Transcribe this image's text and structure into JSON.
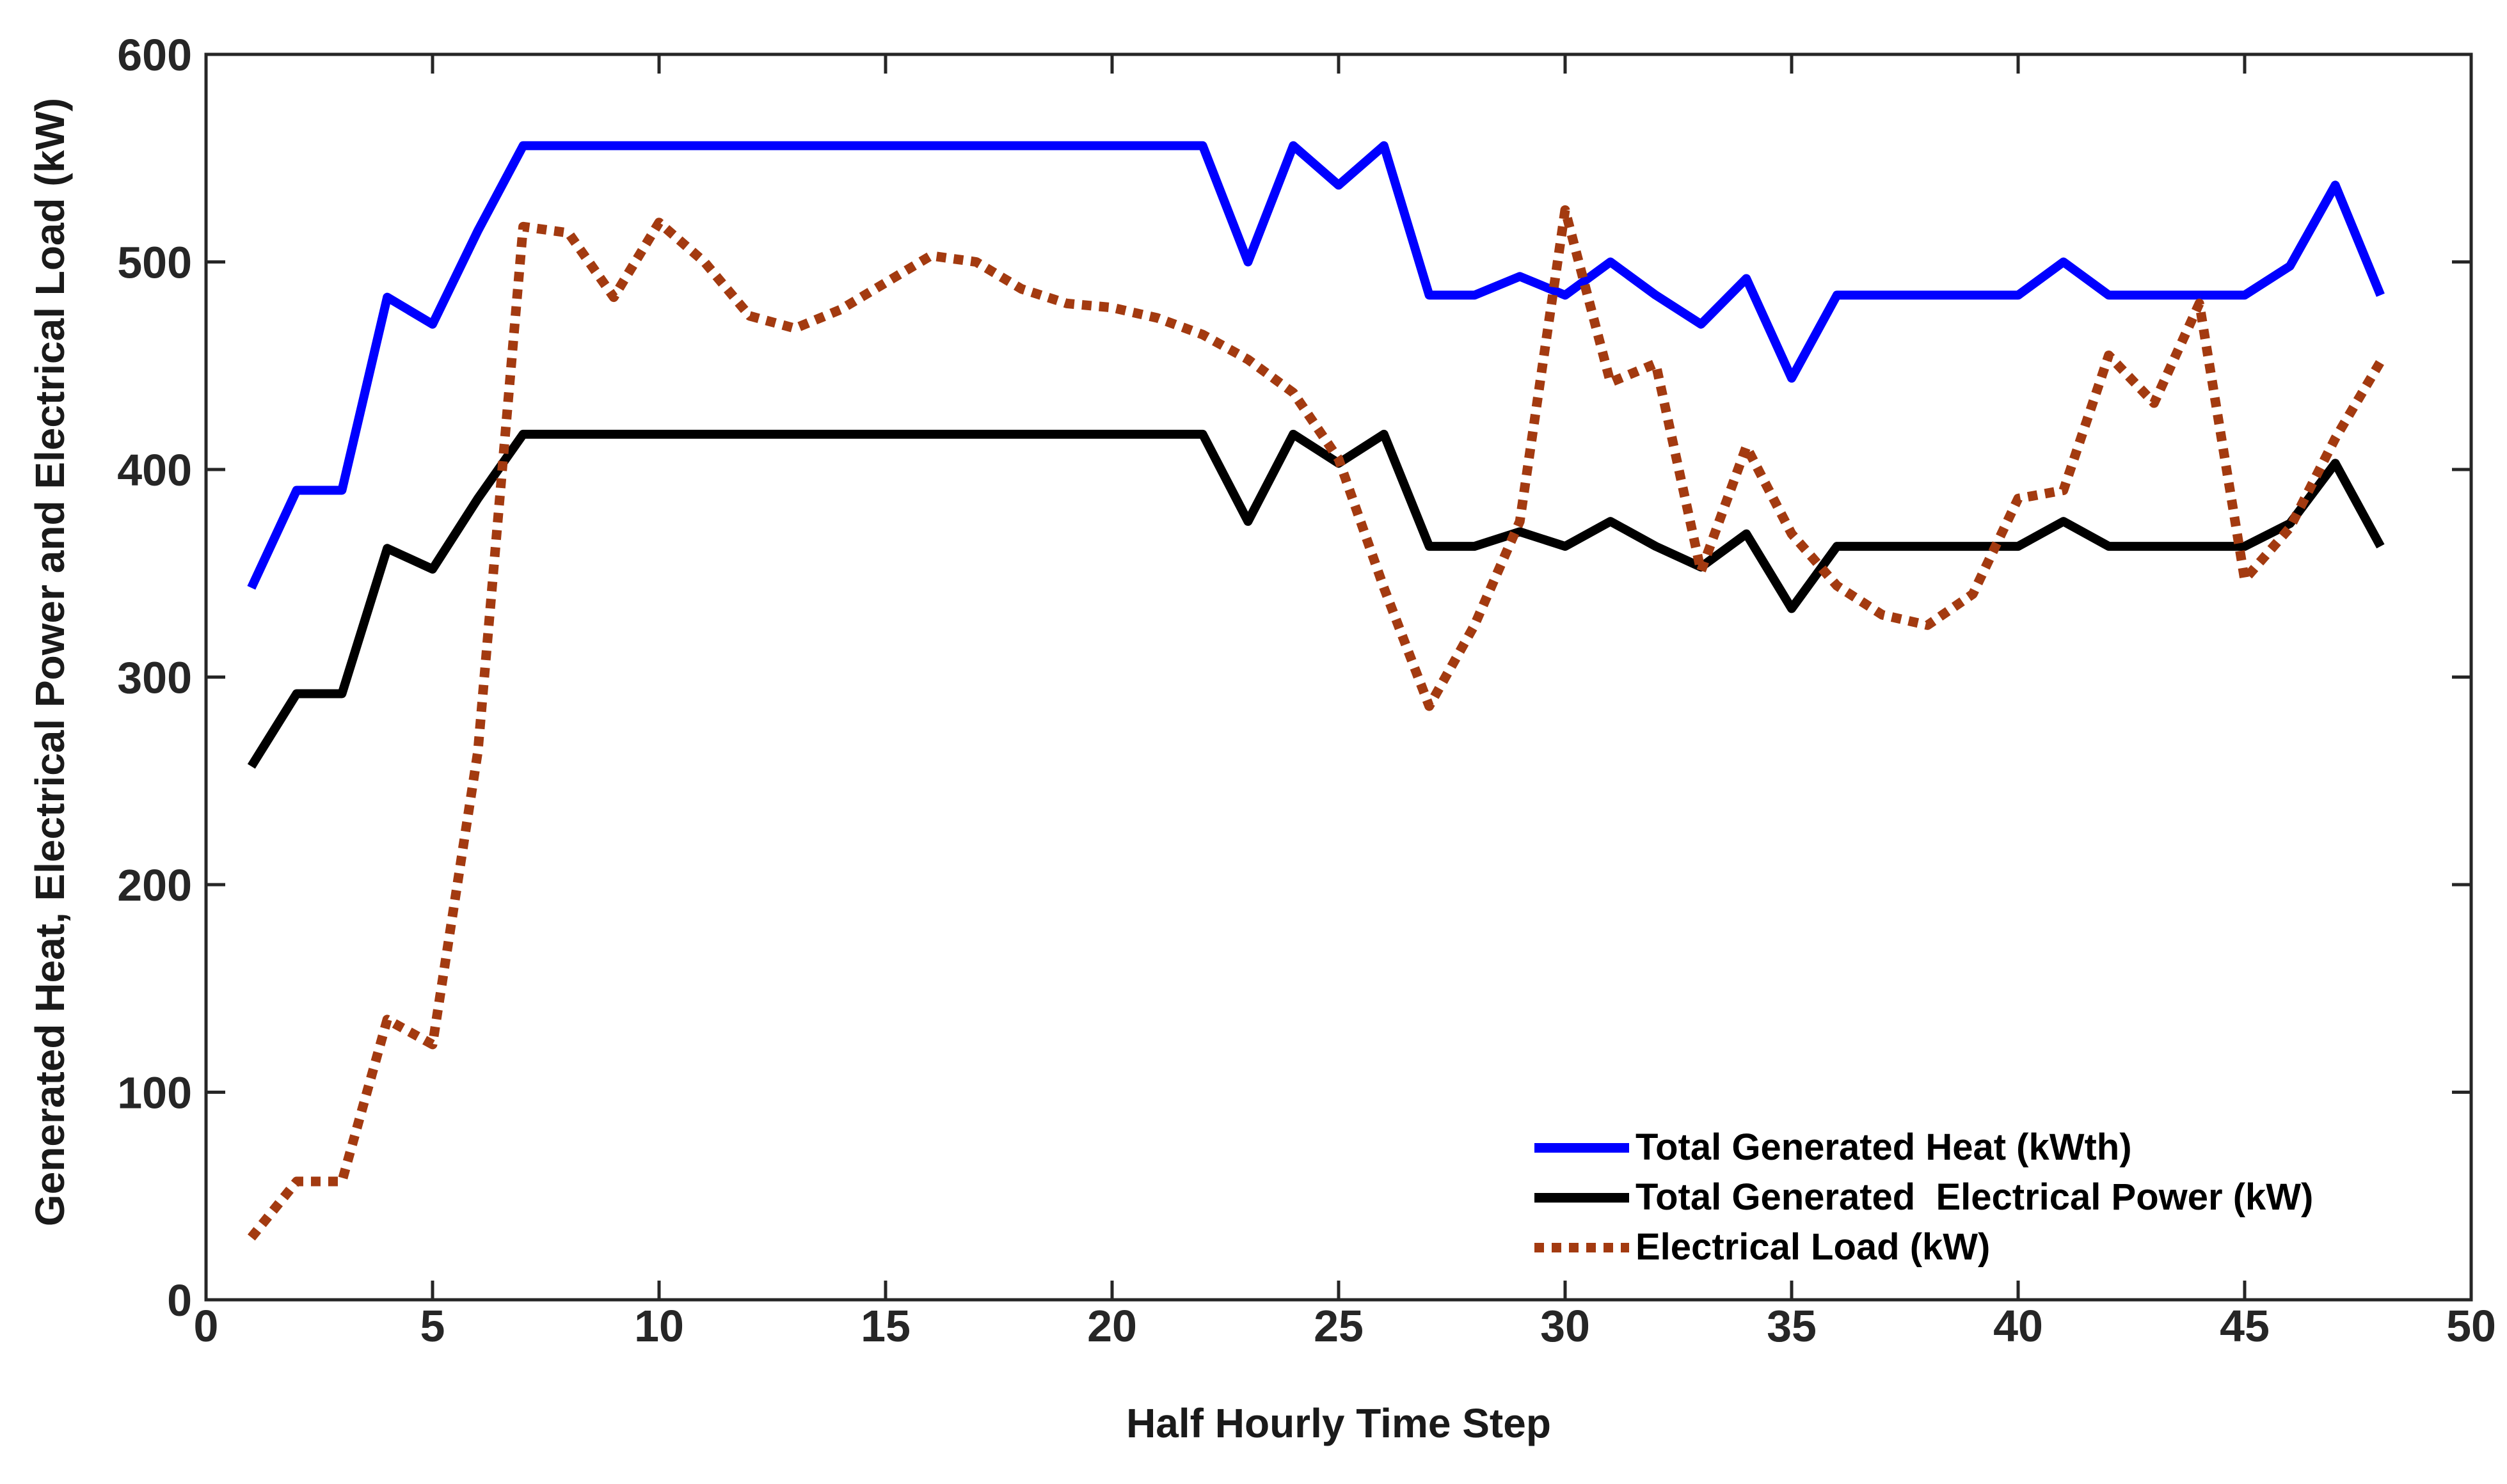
{
  "axes": {
    "x_label": "Half Hourly Time Step",
    "y_label": "Generated Heat, Electrical Power and Electrical Load (kW)",
    "x_ticks": [
      0,
      5,
      10,
      15,
      20,
      25,
      30,
      35,
      40,
      45,
      50
    ],
    "y_ticks": [
      0,
      100,
      200,
      300,
      400,
      500,
      600
    ],
    "x_range": [
      0,
      50
    ],
    "y_range": [
      0,
      600
    ],
    "axis_color": "#262626",
    "label_color": "#1a1a1a",
    "grid": false,
    "box": true
  },
  "chart_data": {
    "type": "line",
    "xlabel": "Half Hourly Time Step",
    "ylabel": "Generated Heat, Electrical Power and Electrical Load (kW)",
    "xlim": [
      0,
      50
    ],
    "ylim": [
      0,
      600
    ],
    "legend_position": "southeast-inside",
    "x": [
      1,
      2,
      3,
      4,
      5,
      6,
      7,
      8,
      9,
      10,
      11,
      12,
      13,
      14,
      15,
      16,
      17,
      18,
      19,
      20,
      21,
      22,
      23,
      24,
      25,
      26,
      27,
      28,
      29,
      30,
      31,
      32,
      33,
      34,
      35,
      36,
      37,
      38,
      39,
      40,
      41,
      42,
      43,
      44,
      45,
      46,
      47,
      48
    ],
    "series": [
      {
        "name": "Total Generated Heat (kWth)",
        "color": "#0000FF",
        "style": "solid",
        "values": [
          343,
          390,
          390,
          483,
          470,
          515,
          556,
          556,
          556,
          556,
          556,
          556,
          556,
          556,
          556,
          556,
          556,
          556,
          556,
          556,
          556,
          556,
          500,
          556,
          537,
          556,
          484,
          484,
          493,
          484,
          500,
          484,
          470,
          492,
          444,
          484,
          484,
          484,
          484,
          484,
          500,
          484,
          484,
          484,
          484,
          498,
          537,
          484
        ]
      },
      {
        "name": "Total Generated  Electrical Power (kW)",
        "color": "#000000",
        "style": "solid",
        "values": [
          257,
          292,
          292,
          362,
          352,
          386,
          417,
          417,
          417,
          417,
          417,
          417,
          417,
          417,
          417,
          417,
          417,
          417,
          417,
          417,
          417,
          417,
          375,
          417,
          403,
          417,
          363,
          363,
          370,
          363,
          375,
          363,
          353,
          369,
          333,
          363,
          363,
          363,
          363,
          363,
          375,
          363,
          363,
          363,
          363,
          374,
          403,
          363
        ]
      },
      {
        "name": "Electrical Load (kW)",
        "color": "#A33A10",
        "style": "dotted",
        "values": [
          30,
          57,
          57,
          135,
          123,
          264,
          517,
          514,
          483,
          519,
          500,
          474,
          468,
          477,
          490,
          503,
          500,
          487,
          480,
          478,
          473,
          465,
          453,
          437,
          405,
          343,
          286,
          325,
          375,
          525,
          442,
          451,
          351,
          411,
          369,
          344,
          330,
          325,
          340,
          386,
          390,
          455,
          432,
          480,
          347,
          372,
          415,
          452
        ]
      }
    ]
  }
}
